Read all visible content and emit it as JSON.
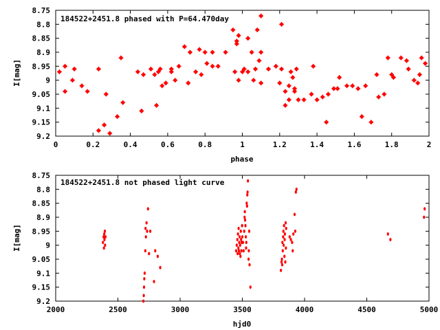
{
  "chart_data": [
    {
      "type": "scatter",
      "title": "184522+2451.8 phased with P=64.470day",
      "xlabel": "phase",
      "ylabel": "I[mag]",
      "xlim": [
        0,
        2
      ],
      "ylim": [
        9.2,
        8.75
      ],
      "y_inverted": true,
      "x_ticks": [
        "0",
        "0.2",
        "0.4",
        "0.6",
        "0.8",
        "1",
        "1.2",
        "1.4",
        "1.6",
        "1.8",
        "2"
      ],
      "y_ticks": [
        "8.75",
        "8.8",
        "8.85",
        "8.9",
        "8.95",
        "9",
        "9.05",
        "9.1",
        "9.15",
        "9.2"
      ],
      "grid": false,
      "legend": "none",
      "marker_color": "#ff0000",
      "points": [
        [
          0.02,
          8.97
        ],
        [
          0.05,
          8.95
        ],
        [
          0.05,
          9.04
        ],
        [
          0.09,
          9.0
        ],
        [
          0.1,
          8.96
        ],
        [
          0.14,
          9.02
        ],
        [
          0.17,
          9.04
        ],
        [
          0.23,
          8.96
        ],
        [
          0.23,
          9.18
        ],
        [
          0.26,
          9.16
        ],
        [
          0.27,
          9.05
        ],
        [
          0.29,
          9.19
        ],
        [
          0.33,
          9.13
        ],
        [
          0.35,
          8.92
        ],
        [
          0.36,
          9.08
        ],
        [
          0.44,
          8.97
        ],
        [
          0.46,
          9.11
        ],
        [
          0.47,
          8.98
        ],
        [
          0.51,
          8.96
        ],
        [
          0.53,
          8.98
        ],
        [
          0.54,
          9.09
        ],
        [
          0.55,
          8.97
        ],
        [
          0.56,
          8.96
        ],
        [
          0.57,
          9.02
        ],
        [
          0.59,
          9.01
        ],
        [
          0.62,
          8.96
        ],
        [
          0.62,
          8.97
        ],
        [
          0.64,
          9.0
        ],
        [
          0.66,
          8.95
        ],
        [
          0.69,
          8.88
        ],
        [
          0.71,
          9.01
        ],
        [
          0.72,
          8.9
        ],
        [
          0.75,
          8.97
        ],
        [
          0.77,
          8.89
        ],
        [
          0.78,
          8.98
        ],
        [
          0.8,
          8.9
        ],
        [
          0.81,
          8.94
        ],
        [
          0.84,
          8.95
        ],
        [
          0.84,
          8.9
        ],
        [
          0.87,
          8.95
        ],
        [
          0.91,
          8.9
        ],
        [
          0.95,
          8.82
        ],
        [
          0.96,
          8.97
        ],
        [
          0.97,
          8.87
        ],
        [
          0.97,
          8.86
        ],
        [
          0.98,
          8.84
        ],
        [
          0.98,
          9.0
        ],
        [
          1.0,
          8.97
        ],
        [
          1.01,
          8.96
        ],
        [
          1.03,
          8.97
        ],
        [
          1.03,
          8.85
        ],
        [
          1.05,
          8.9
        ],
        [
          1.06,
          9.0
        ],
        [
          1.07,
          8.96
        ],
        [
          1.08,
          8.82
        ],
        [
          1.09,
          8.93
        ],
        [
          1.1,
          8.77
        ],
        [
          1.1,
          8.9
        ],
        [
          1.1,
          9.01
        ],
        [
          1.14,
          8.96
        ],
        [
          1.18,
          8.95
        ],
        [
          1.2,
          9.01
        ],
        [
          1.21,
          8.8
        ],
        [
          1.21,
          8.96
        ],
        [
          1.23,
          9.04
        ],
        [
          1.23,
          9.09
        ],
        [
          1.25,
          9.02
        ],
        [
          1.25,
          9.07
        ],
        [
          1.26,
          8.97
        ],
        [
          1.27,
          8.99
        ],
        [
          1.28,
          9.03
        ],
        [
          1.28,
          9.04
        ],
        [
          1.29,
          8.96
        ],
        [
          1.3,
          9.07
        ],
        [
          1.33,
          9.07
        ],
        [
          1.37,
          9.05
        ],
        [
          1.38,
          8.95
        ],
        [
          1.4,
          9.07
        ],
        [
          1.43,
          9.06
        ],
        [
          1.45,
          9.15
        ],
        [
          1.46,
          9.05
        ],
        [
          1.49,
          9.03
        ],
        [
          1.51,
          9.03
        ],
        [
          1.52,
          8.99
        ],
        [
          1.56,
          9.02
        ],
        [
          1.59,
          9.02
        ],
        [
          1.62,
          9.03
        ],
        [
          1.64,
          9.13
        ],
        [
          1.66,
          9.02
        ],
        [
          1.69,
          9.15
        ],
        [
          1.72,
          8.98
        ],
        [
          1.73,
          9.06
        ],
        [
          1.76,
          9.05
        ],
        [
          1.78,
          8.92
        ],
        [
          1.8,
          8.98
        ],
        [
          1.81,
          8.99
        ],
        [
          1.85,
          8.92
        ],
        [
          1.88,
          8.93
        ],
        [
          1.89,
          8.96
        ],
        [
          1.92,
          9.0
        ],
        [
          1.94,
          9.01
        ],
        [
          1.95,
          8.98
        ],
        [
          1.96,
          8.92
        ],
        [
          1.98,
          8.94
        ]
      ]
    },
    {
      "type": "scatter",
      "title": "184522+2451.8 not phased light curve",
      "xlabel": "hjd0",
      "ylabel": "I[mag]",
      "xlim": [
        2000,
        5000
      ],
      "ylim": [
        9.2,
        8.75
      ],
      "y_inverted": true,
      "x_ticks": [
        "2000",
        "2500",
        "3000",
        "3500",
        "4000",
        "4500",
        "5000"
      ],
      "y_ticks": [
        "8.75",
        "8.8",
        "8.85",
        "8.9",
        "8.95",
        "9",
        "9.05",
        "9.1",
        "9.15",
        "9.2"
      ],
      "grid": false,
      "legend": "none",
      "marker_color": "#ff0000",
      "points": [
        [
          2380,
          8.99
        ],
        [
          2385,
          8.97
        ],
        [
          2388,
          9.01
        ],
        [
          2390,
          8.96
        ],
        [
          2392,
          8.98
        ],
        [
          2395,
          8.95
        ],
        [
          2397,
          9.0
        ],
        [
          2400,
          8.97
        ],
        [
          2705,
          9.2
        ],
        [
          2708,
          9.18
        ],
        [
          2710,
          9.15
        ],
        [
          2712,
          9.12
        ],
        [
          2715,
          9.1
        ],
        [
          2720,
          9.02
        ],
        [
          2722,
          8.94
        ],
        [
          2725,
          8.97
        ],
        [
          2730,
          8.92
        ],
        [
          2735,
          8.95
        ],
        [
          2742,
          8.87
        ],
        [
          2750,
          9.03
        ],
        [
          2760,
          8.95
        ],
        [
          2790,
          9.13
        ],
        [
          2800,
          9.02
        ],
        [
          2820,
          9.04
        ],
        [
          2840,
          9.08
        ],
        [
          3450,
          9.02
        ],
        [
          3455,
          9.0
        ],
        [
          3460,
          8.98
        ],
        [
          3462,
          9.03
        ],
        [
          3465,
          8.96
        ],
        [
          3468,
          9.01
        ],
        [
          3470,
          8.94
        ],
        [
          3472,
          9.02
        ],
        [
          3475,
          8.99
        ],
        [
          3478,
          8.97
        ],
        [
          3480,
          9.03
        ],
        [
          3482,
          9.0
        ],
        [
          3485,
          9.04
        ],
        [
          3488,
          8.95
        ],
        [
          3490,
          8.98
        ],
        [
          3492,
          9.02
        ],
        [
          3495,
          8.99
        ],
        [
          3498,
          8.93
        ],
        [
          3500,
          8.97
        ],
        [
          3505,
          8.99
        ],
        [
          3510,
          9.02
        ],
        [
          3515,
          8.95
        ],
        [
          3518,
          8.9
        ],
        [
          3520,
          8.88
        ],
        [
          3522,
          8.91
        ],
        [
          3525,
          8.93
        ],
        [
          3528,
          8.97
        ],
        [
          3530,
          9.01
        ],
        [
          3532,
          8.99
        ],
        [
          3535,
          8.85
        ],
        [
          3538,
          8.86
        ],
        [
          3540,
          8.82
        ],
        [
          3542,
          8.81
        ],
        [
          3545,
          8.77
        ],
        [
          3550,
          9.05
        ],
        [
          3552,
          9.02
        ],
        [
          3555,
          8.95
        ],
        [
          3558,
          9.07
        ],
        [
          3565,
          9.15
        ],
        [
          3810,
          9.09
        ],
        [
          3815,
          9.06
        ],
        [
          3818,
          9.05
        ],
        [
          3820,
          9.07
        ],
        [
          3822,
          8.99
        ],
        [
          3825,
          9.02
        ],
        [
          3828,
          8.97
        ],
        [
          3830,
          8.95
        ],
        [
          3832,
          9.0
        ],
        [
          3835,
          8.93
        ],
        [
          3838,
          9.04
        ],
        [
          3840,
          8.98
        ],
        [
          3842,
          8.96
        ],
        [
          3845,
          9.06
        ],
        [
          3848,
          8.92
        ],
        [
          3850,
          9.01
        ],
        [
          3852,
          8.94
        ],
        [
          3880,
          8.97
        ],
        [
          3890,
          8.98
        ],
        [
          3900,
          8.99
        ],
        [
          3905,
          9.02
        ],
        [
          3910,
          8.96
        ],
        [
          3920,
          8.89
        ],
        [
          3925,
          8.95
        ],
        [
          3930,
          8.81
        ],
        [
          3935,
          8.8
        ],
        [
          4670,
          8.96
        ],
        [
          4690,
          8.98
        ],
        [
          4960,
          8.9
        ],
        [
          4965,
          8.87
        ]
      ]
    }
  ]
}
